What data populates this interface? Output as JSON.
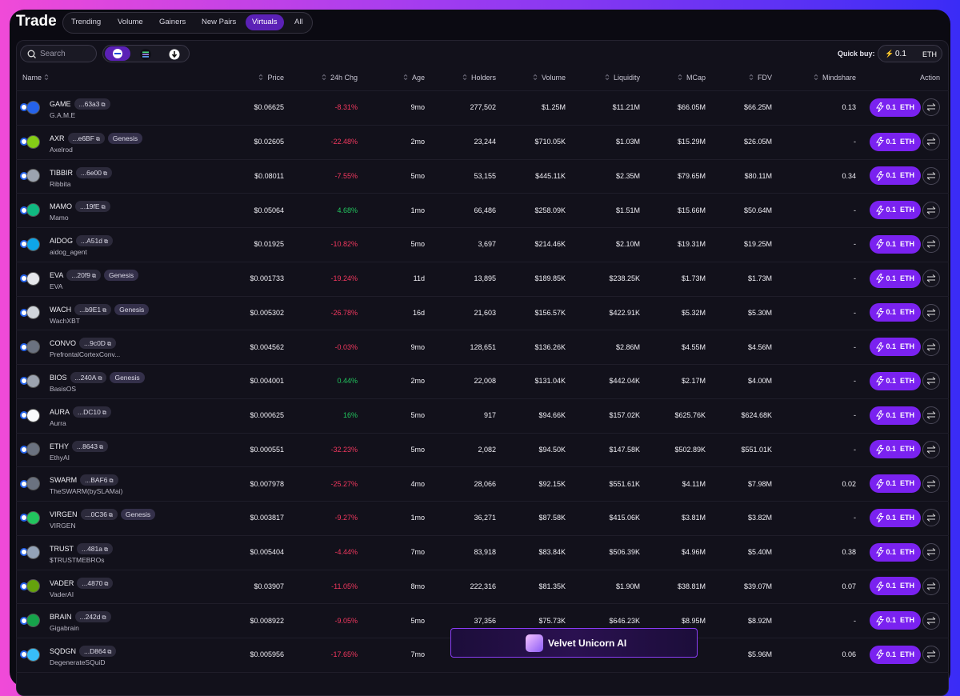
{
  "header": {
    "title": "Trade",
    "tabs": [
      "Trending",
      "Volume",
      "Gainers",
      "New Pairs",
      "Virtuals",
      "All"
    ],
    "active_tab": 4
  },
  "toolbar": {
    "search_placeholder": "Search",
    "quick_buy_label": "Quick buy:",
    "quick_buy_amount": "0.1",
    "quick_buy_currency": "ETH"
  },
  "table": {
    "columns": [
      "Name",
      "Price",
      "24h Chg",
      "Age",
      "Holders",
      "Volume",
      "Liquidity",
      "MCap",
      "FDV",
      "Mindshare",
      "Action"
    ],
    "buy_button": {
      "amount": "0.1",
      "currency": "ETH"
    },
    "rows": [
      {
        "ticker": "GAME",
        "address": "...63a3",
        "tag": null,
        "name": "G.A.M.E",
        "price": "$0.06625",
        "change": "-8.31%",
        "age": "9mo",
        "holders": "277,502",
        "volume": "$1.25M",
        "liquidity": "$11.21M",
        "mcap": "$66.05M",
        "fdv": "$66.25M",
        "mindshare": "0.13"
      },
      {
        "ticker": "AXR",
        "address": "...e6BF",
        "tag": "Genesis",
        "name": "Axelrod",
        "price": "$0.02605",
        "change": "-22.48%",
        "age": "2mo",
        "holders": "23,244",
        "volume": "$710.05K",
        "liquidity": "$1.03M",
        "mcap": "$15.29M",
        "fdv": "$26.05M",
        "mindshare": "-"
      },
      {
        "ticker": "TIBBIR",
        "address": "...6e00",
        "tag": null,
        "name": "Ribbita",
        "price": "$0.08011",
        "change": "-7.55%",
        "age": "5mo",
        "holders": "53,155",
        "volume": "$445.11K",
        "liquidity": "$2.35M",
        "mcap": "$79.65M",
        "fdv": "$80.11M",
        "mindshare": "0.34"
      },
      {
        "ticker": "MAMO",
        "address": "...19fE",
        "tag": null,
        "name": "Mamo",
        "price": "$0.05064",
        "change": "4.68%",
        "age": "1mo",
        "holders": "66,486",
        "volume": "$258.09K",
        "liquidity": "$1.51M",
        "mcap": "$15.66M",
        "fdv": "$50.64M",
        "mindshare": "-"
      },
      {
        "ticker": "AIDOG",
        "address": "...A51d",
        "tag": null,
        "name": "aidog_agent",
        "price": "$0.01925",
        "change": "-10.82%",
        "age": "5mo",
        "holders": "3,697",
        "volume": "$214.46K",
        "liquidity": "$2.10M",
        "mcap": "$19.31M",
        "fdv": "$19.25M",
        "mindshare": "-"
      },
      {
        "ticker": "EVA",
        "address": "...20f9",
        "tag": "Genesis",
        "name": "EVA",
        "price": "$0.001733",
        "change": "-19.24%",
        "age": "11d",
        "holders": "13,895",
        "volume": "$189.85K",
        "liquidity": "$238.25K",
        "mcap": "$1.73M",
        "fdv": "$1.73M",
        "mindshare": "-"
      },
      {
        "ticker": "WACH",
        "address": "...b9E1",
        "tag": "Genesis",
        "name": "WachXBT",
        "price": "$0.005302",
        "change": "-26.78%",
        "age": "16d",
        "holders": "21,603",
        "volume": "$156.57K",
        "liquidity": "$422.91K",
        "mcap": "$5.32M",
        "fdv": "$5.30M",
        "mindshare": "-"
      },
      {
        "ticker": "CONVO",
        "address": "...9c0D",
        "tag": null,
        "name": "PrefrontalCortexConv...",
        "price": "$0.004562",
        "change": "-0.03%",
        "age": "9mo",
        "holders": "128,651",
        "volume": "$136.26K",
        "liquidity": "$2.86M",
        "mcap": "$4.55M",
        "fdv": "$4.56M",
        "mindshare": "-"
      },
      {
        "ticker": "BIOS",
        "address": "...240A",
        "tag": "Genesis",
        "name": "BasisOS",
        "price": "$0.004001",
        "change": "0.44%",
        "age": "2mo",
        "holders": "22,008",
        "volume": "$131.04K",
        "liquidity": "$442.04K",
        "mcap": "$2.17M",
        "fdv": "$4.00M",
        "mindshare": "-"
      },
      {
        "ticker": "AURA",
        "address": "...DC10",
        "tag": null,
        "name": "Aurra",
        "price": "$0.000625",
        "change": "16%",
        "age": "5mo",
        "holders": "917",
        "volume": "$94.66K",
        "liquidity": "$157.02K",
        "mcap": "$625.76K",
        "fdv": "$624.68K",
        "mindshare": "-"
      },
      {
        "ticker": "ETHY",
        "address": "...8643",
        "tag": null,
        "name": "EthyAI",
        "price": "$0.000551",
        "change": "-32.23%",
        "age": "5mo",
        "holders": "2,082",
        "volume": "$94.50K",
        "liquidity": "$147.58K",
        "mcap": "$502.89K",
        "fdv": "$551.01K",
        "mindshare": "-"
      },
      {
        "ticker": "SWARM",
        "address": "...BAF6",
        "tag": null,
        "name": "TheSWARM(bySLAMai)",
        "price": "$0.007978",
        "change": "-25.27%",
        "age": "4mo",
        "holders": "28,066",
        "volume": "$92.15K",
        "liquidity": "$551.61K",
        "mcap": "$4.11M",
        "fdv": "$7.98M",
        "mindshare": "0.02"
      },
      {
        "ticker": "VIRGEN",
        "address": "...0C36",
        "tag": "Genesis",
        "name": "VIRGEN",
        "price": "$0.003817",
        "change": "-9.27%",
        "age": "1mo",
        "holders": "36,271",
        "volume": "$87.58K",
        "liquidity": "$415.06K",
        "mcap": "$3.81M",
        "fdv": "$3.82M",
        "mindshare": "-"
      },
      {
        "ticker": "TRUST",
        "address": "...481a",
        "tag": null,
        "name": "$TRUSTMEBROs",
        "price": "$0.005404",
        "change": "-4.44%",
        "age": "7mo",
        "holders": "83,918",
        "volume": "$83.84K",
        "liquidity": "$506.39K",
        "mcap": "$4.96M",
        "fdv": "$5.40M",
        "mindshare": "0.38"
      },
      {
        "ticker": "VADER",
        "address": "...4870",
        "tag": null,
        "name": "VaderAI",
        "price": "$0.03907",
        "change": "-11.05%",
        "age": "8mo",
        "holders": "222,316",
        "volume": "$81.35K",
        "liquidity": "$1.90M",
        "mcap": "$38.81M",
        "fdv": "$39.07M",
        "mindshare": "0.07"
      },
      {
        "ticker": "BRAIN",
        "address": "...242d",
        "tag": null,
        "name": "Gigabrain",
        "price": "$0.008922",
        "change": "-9.05%",
        "age": "5mo",
        "holders": "37,356",
        "volume": "$75.73K",
        "liquidity": "$646.23K",
        "mcap": "$8.95M",
        "fdv": "$8.92M",
        "mindshare": "-"
      },
      {
        "ticker": "SQDGN",
        "address": "...D864",
        "tag": null,
        "name": "DegenerateSQuiD",
        "price": "$0.005956",
        "change": "-17.65%",
        "age": "7mo",
        "holders": null,
        "volume": null,
        "liquidity": null,
        "mcap": null,
        "fdv": "$5.96M",
        "mindshare": "0.06"
      }
    ]
  },
  "banner": {
    "label": "Velvet Unicorn AI"
  }
}
